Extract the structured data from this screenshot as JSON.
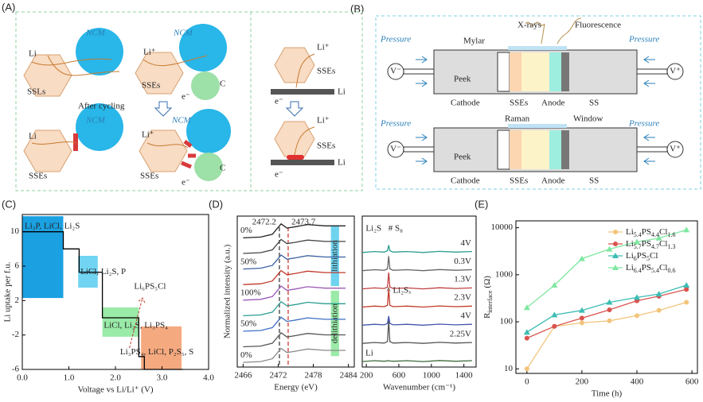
{
  "figure": {
    "panel_labels": [
      "(A)",
      "(B)",
      "(C)",
      "(D)",
      "(E)"
    ],
    "diagram_a": {
      "labels": [
        "NCM",
        "Li",
        "SSLs",
        "NCM",
        "Li⁺",
        "SSEs",
        "e⁻",
        "C",
        "Li⁺",
        "SSEs",
        "Li",
        "e⁻",
        "After cycling",
        "NCM",
        "Li",
        "SSEs",
        "NCM",
        "Li⁺",
        "SSEs",
        "e⁻",
        "C",
        "Li⁺",
        "SSEs",
        "Li",
        "e⁻"
      ]
    },
    "diagram_b": {
      "labels": [
        "X-rays",
        "Fluorescence",
        "Pressure",
        "Pressure",
        "Mylar",
        "V⁻",
        "V⁺",
        "Peek",
        "Cathode",
        "SSEs",
        "Anode",
        "SS",
        "Pressure",
        "Pressure",
        "Raman",
        "Window",
        "V⁻",
        "V⁺",
        "Peek",
        "Cathode",
        "SSEs",
        "Anode",
        "SS"
      ]
    }
  },
  "chart_data": [
    {
      "type": "line",
      "xlabel": "Voltage vs Li/Li⁺ (V)",
      "ylabel": "Li uptake per f.u.",
      "xlim": [
        0,
        4
      ],
      "ylim": [
        -6,
        12
      ],
      "xticks": [
        {
          "value": 0,
          "label": "0.0"
        },
        {
          "value": 1,
          "label": "1.0"
        },
        {
          "value": 2,
          "label": "2.0"
        },
        {
          "value": 3,
          "label": "3.0"
        },
        {
          "value": 4,
          "label": "4.0"
        }
      ],
      "yticks": [
        -6,
        -2,
        2,
        6,
        10
      ],
      "x": [
        0,
        0.88,
        0.88,
        1.22,
        1.22,
        1.72,
        1.72,
        2.5,
        2.5,
        2.62,
        2.62,
        3.45
      ],
      "values": [
        10,
        10,
        8,
        8,
        5.3,
        5.3,
        0,
        0,
        -4.5,
        -4.5,
        -6,
        -6
      ],
      "color": "#000000",
      "regions": [
        {
          "label": "Li₃P, LiCl, Li₂S",
          "color": "#1ba1e2",
          "x": [
            0,
            0.88
          ],
          "y": [
            2.3,
            11.8
          ]
        },
        {
          "label": "LiCl, Li₂S, P",
          "color": "#70d4f2",
          "x": [
            1.2,
            1.62
          ],
          "y": [
            3.5,
            7.2
          ]
        },
        {
          "label": "LiCl, Li₂S, Li₃PS₄",
          "color": "#9aeaa8",
          "x": [
            1.72,
            2.5
          ],
          "y": [
            -2.2,
            1.2
          ]
        },
        {
          "label": "Li₃PS₄, LiCl, P₂S₅, S",
          "color": "#f5a97e",
          "x": [
            2.55,
            3.42
          ],
          "y": [
            -6,
            -1
          ]
        }
      ],
      "annotation": {
        "text": "Li₆PS₅Cl",
        "color": "#c0392b"
      }
    },
    {
      "type": "line",
      "xlabel": "Energy (eV)",
      "ylabel": "Normalized intensity (a.u.)",
      "xlim": [
        2465,
        2485
      ],
      "ylim": [
        -0.3,
        9.4
      ],
      "xticks": [
        2466,
        2472,
        2478,
        2484
      ],
      "x": [
        2466,
        2469,
        2471,
        2471.9,
        2472.5,
        2473.5,
        2475,
        2477,
        2480,
        2483.5
      ],
      "series": [
        {
          "name": "0%",
          "color": "#8a8a8a",
          "values": [
            0,
            0.05,
            0.23,
            0.63,
            0.9,
            0.63,
            0.72,
            0.86,
            0.77,
            0.77
          ]
        },
        {
          "color": "#555555",
          "values": [
            1,
            1.05,
            1.23,
            1.63,
            1.9,
            1.63,
            1.72,
            1.86,
            1.77,
            1.77
          ]
        },
        {
          "name": "50%",
          "color": "#3f6fc4",
          "values": [
            2,
            2.05,
            2.23,
            2.63,
            2.9,
            2.63,
            2.72,
            2.86,
            2.77,
            2.77
          ]
        },
        {
          "color": "#2a9d8f",
          "values": [
            3,
            3.05,
            3.23,
            3.63,
            3.9,
            3.63,
            3.72,
            3.86,
            3.77,
            3.77
          ]
        },
        {
          "name": "100%",
          "color": "#9b59b6",
          "values": [
            4,
            4.05,
            4.23,
            4.63,
            4.9,
            4.63,
            4.72,
            4.86,
            4.77,
            4.77
          ]
        },
        {
          "color": "#c0392b",
          "values": [
            5,
            5.05,
            5.23,
            5.63,
            5.9,
            5.63,
            5.72,
            5.86,
            5.77,
            5.77
          ]
        },
        {
          "name": "50%",
          "color": "#3a5fa0",
          "values": [
            6,
            6.05,
            6.23,
            6.63,
            6.9,
            6.63,
            6.72,
            6.86,
            6.77,
            6.77
          ]
        },
        {
          "color": "#444444",
          "values": [
            7,
            7.05,
            7.23,
            7.63,
            7.9,
            7.63,
            7.72,
            7.86,
            7.77,
            7.77
          ]
        },
        {
          "name": "0%",
          "color": "#222222",
          "values": [
            8,
            8.05,
            8.23,
            8.63,
            8.9,
            8.63,
            8.72,
            8.86,
            8.77,
            8.77
          ]
        }
      ],
      "vlines": [
        {
          "value": 2472.2,
          "label": "2472.2",
          "color": "#555555"
        },
        {
          "value": 2473.7,
          "label": "2473.7",
          "color": "#d9534f"
        }
      ],
      "bands": [
        {
          "label": "lithiation",
          "color": "#6fd3f0"
        },
        {
          "label": "delithiation",
          "color": "#9aeaa8"
        }
      ]
    },
    {
      "type": "line",
      "xlabel": "Wavenumber (cm⁻¹)",
      "xlim": [
        150,
        1550
      ],
      "ylim": [
        -0.3,
        8.0
      ],
      "xticks": [
        200,
        600,
        1000,
        1400
      ],
      "x": [
        150,
        300,
        420,
        460,
        475,
        490,
        530,
        700,
        900,
        1100,
        1300,
        1500
      ],
      "series": [
        {
          "name": "Li",
          "color": "#3d6b3d",
          "values": [
            0,
            0.05,
            0.02,
            0.04,
            0.05,
            0.03,
            0.02,
            0.05,
            0,
            0.06,
            0.02,
            0.05
          ]
        },
        {
          "name": "2.25V",
          "color": "#555555",
          "values": [
            1,
            1.05,
            1.02,
            1.1,
            2.3,
            1.1,
            1.02,
            1.05,
            1,
            1.06,
            1.02,
            1.05
          ]
        },
        {
          "name": "4V",
          "color": "#4455aa",
          "values": [
            2,
            2.05,
            2.02,
            2.1,
            2.5,
            2.1,
            2.02,
            2.05,
            2,
            2.06,
            2.02,
            2.05
          ]
        },
        {
          "name": "2.3V",
          "color": "#c0392b",
          "values": [
            3,
            3.05,
            3.02,
            3.1,
            4,
            3.1,
            3.02,
            3.05,
            3,
            3.06,
            3.02,
            3.05
          ]
        },
        {
          "name": "1.3V",
          "color": "#c04040",
          "values": [
            4,
            4.05,
            4.02,
            4.1,
            4.9,
            4.1,
            4.02,
            4.05,
            4,
            4.06,
            4.02,
            4.05
          ]
        },
        {
          "name": "0.3V",
          "color": "#666666",
          "values": [
            5,
            5.05,
            5.02,
            5.1,
            5.8,
            5.1,
            5.02,
            5.05,
            5,
            5.06,
            5.02,
            5.05
          ]
        },
        {
          "name": "4V",
          "color": "#2a9d8f",
          "values": [
            6,
            6.05,
            6.02,
            6.1,
            6.4,
            6.1,
            6.02,
            6.05,
            6,
            6.06,
            6.02,
            6.05
          ]
        }
      ],
      "annotations": [
        "Li₂S",
        "# S₈",
        "^ Li₂Sₓ"
      ]
    },
    {
      "type": "line",
      "xlabel": "Time (h)",
      "ylabel": {
        "symbol": "R",
        "subscript": "interface",
        "unit": "(Ω)"
      },
      "log": true,
      "xlim": [
        -40,
        620
      ],
      "ylim": [
        8,
        14000
      ],
      "xticks": [
        0,
        200,
        400,
        600
      ],
      "yticks": [
        10,
        100,
        1000,
        10000
      ],
      "legend": "upper right",
      "x": [
        0,
        100,
        200,
        300,
        400,
        480,
        580
      ],
      "series": [
        {
          "name": "Li5.4PS4.4Cl1.6",
          "color": "#f2c47a",
          "marker": "circle",
          "values": [
            10,
            80,
            95,
            105,
            135,
            175,
            260
          ]
        },
        {
          "name": "Li5.7PS4.7Cl1.3",
          "color": "#d9534f",
          "marker": "circle",
          "values": [
            45,
            80,
            120,
            180,
            280,
            350,
            490
          ]
        },
        {
          "name": "Li6PS5Cl",
          "color": "#3cbcb4",
          "marker": "triangle",
          "values": [
            60,
            140,
            175,
            260,
            330,
            390,
            600
          ]
        },
        {
          "name": "Li6.4PS5.4Cl0.6",
          "color": "#7ee8a0",
          "marker": "triangle",
          "values": [
            200,
            600,
            2200,
            3500,
            5000,
            6000,
            9000
          ]
        }
      ]
    }
  ]
}
